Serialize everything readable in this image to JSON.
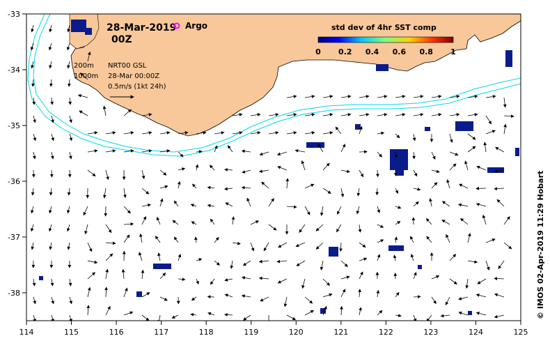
{
  "title": {
    "date": "28-Mar-2019",
    "hour": "00Z",
    "argo_label": "Argo"
  },
  "colorbar": {
    "title": "std dev of 4hr SST comp",
    "ticks": [
      "0",
      "0.2",
      "0.4",
      "0.6",
      "0.8",
      "1"
    ]
  },
  "legend": {
    "isobath_200": "200m",
    "isobath_1000": "1000m",
    "product": "NRT00 GSL",
    "timestamp": "28-Mar 00:00Z",
    "scale": "0.5m/s (1kt 24h)"
  },
  "axes": {
    "x_ticks": [
      "114",
      "115",
      "116",
      "117",
      "118",
      "119",
      "120",
      "121",
      "122",
      "123",
      "124",
      "125"
    ],
    "y_ticks": [
      "-33",
      "-34",
      "-35",
      "-36",
      "-37",
      "-38"
    ]
  },
  "credit": "© IMOS 02-Apr-2019 11:29 Hobart",
  "colors": {
    "land": "#f8c89a",
    "isobath": "#00d8e8",
    "sst_patch": "#0a1c8c",
    "argo_marker": "#ff00ff"
  }
}
